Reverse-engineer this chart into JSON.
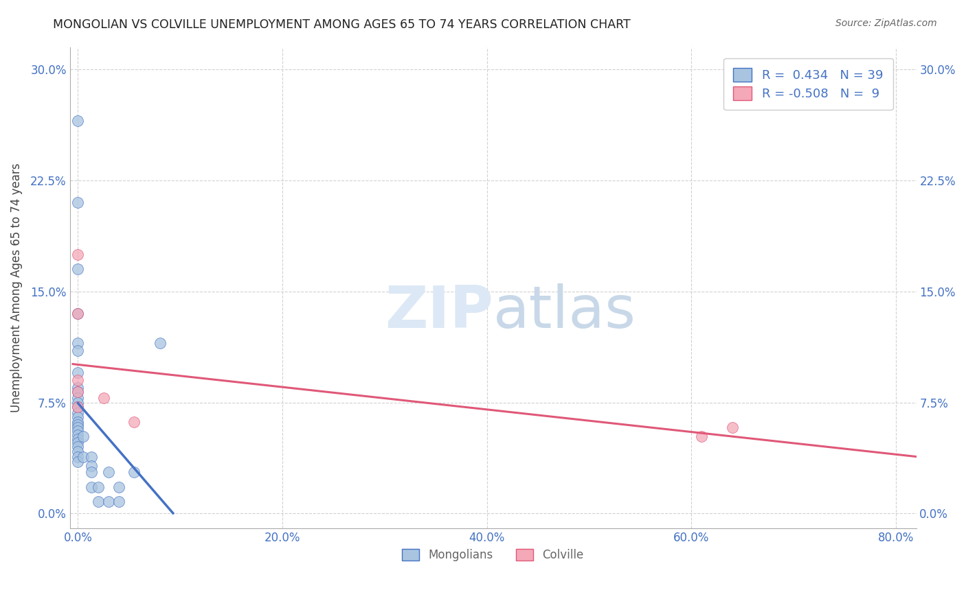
{
  "title": "MONGOLIAN VS COLVILLE UNEMPLOYMENT AMONG AGES 65 TO 74 YEARS CORRELATION CHART",
  "source": "Source: ZipAtlas.com",
  "ylabel": "Unemployment Among Ages 65 to 74 years",
  "xlabel_ticks": [
    "0.0%",
    "20.0%",
    "40.0%",
    "60.0%",
    "80.0%"
  ],
  "xlabel_vals": [
    0.0,
    0.2,
    0.4,
    0.6,
    0.8
  ],
  "ylabel_ticks": [
    "0.0%",
    "7.5%",
    "15.0%",
    "22.5%",
    "30.0%"
  ],
  "ylabel_vals": [
    0.0,
    0.075,
    0.15,
    0.225,
    0.3
  ],
  "xlim": [
    -0.008,
    0.82
  ],
  "ylim": [
    -0.01,
    0.315
  ],
  "mongolian_R": 0.434,
  "mongolian_N": 39,
  "colville_R": -0.508,
  "colville_N": 9,
  "mongolian_color": "#a8c4e0",
  "colville_color": "#f4a8b8",
  "mongolian_line_color": "#4472c4",
  "colville_line_color": "#e05878",
  "background_color": "#ffffff",
  "grid_color": "#cccccc",
  "mongolian_x": [
    0.0,
    0.0,
    0.0,
    0.0,
    0.0,
    0.0,
    0.0,
    0.0,
    0.0,
    0.0,
    0.0,
    0.0,
    0.0,
    0.0,
    0.0,
    0.0,
    0.0,
    0.0,
    0.0,
    0.0,
    0.0,
    0.0,
    0.0,
    0.0,
    0.0,
    0.005,
    0.005,
    0.013,
    0.013,
    0.013,
    0.013,
    0.02,
    0.02,
    0.03,
    0.03,
    0.04,
    0.04,
    0.055,
    0.08
  ],
  "mongolian_y": [
    0.265,
    0.21,
    0.165,
    0.135,
    0.115,
    0.11,
    0.095,
    0.085,
    0.082,
    0.078,
    0.075,
    0.072,
    0.068,
    0.065,
    0.062,
    0.06,
    0.058,
    0.056,
    0.053,
    0.05,
    0.048,
    0.045,
    0.042,
    0.038,
    0.035,
    0.052,
    0.038,
    0.038,
    0.032,
    0.028,
    0.018,
    0.018,
    0.008,
    0.028,
    0.008,
    0.018,
    0.008,
    0.028,
    0.115
  ],
  "colville_x": [
    0.0,
    0.0,
    0.0,
    0.0,
    0.0,
    0.025,
    0.055,
    0.61,
    0.64
  ],
  "colville_y": [
    0.175,
    0.135,
    0.09,
    0.082,
    0.072,
    0.078,
    0.062,
    0.052,
    0.058
  ],
  "watermark": "ZIPatlas",
  "watermark_color": "#d0ddf0"
}
